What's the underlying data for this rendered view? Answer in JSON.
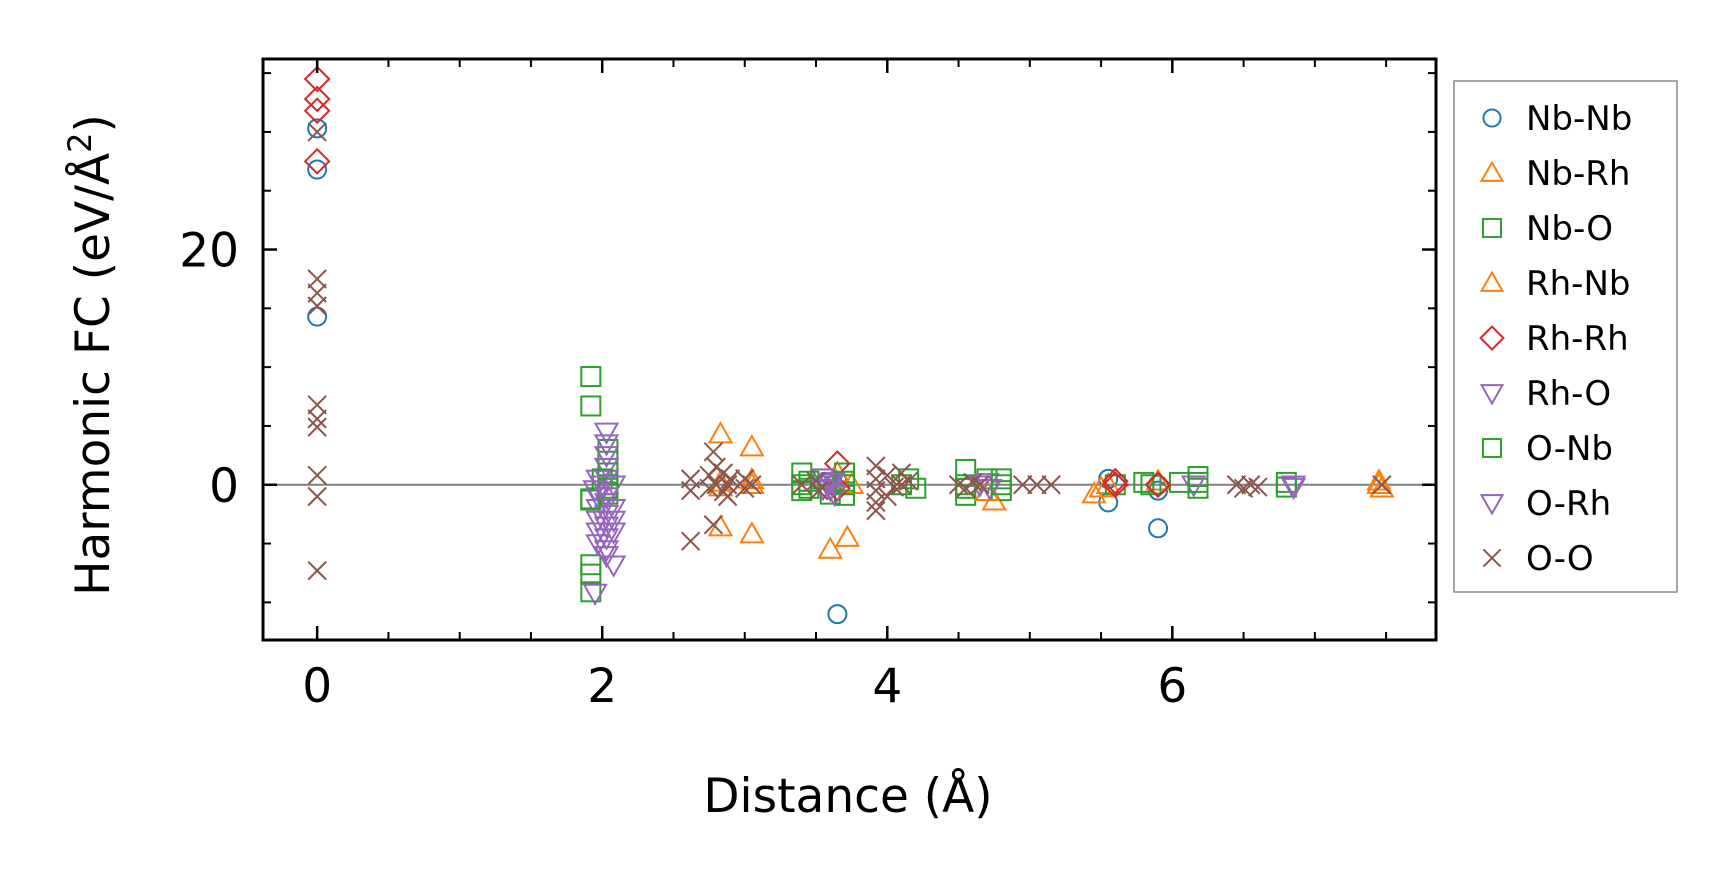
{
  "chart_data": {
    "type": "scatter",
    "title": "",
    "xlabel": "Distance (Å)",
    "ylabel": "Harmonic FC (eV/Å²)",
    "ylabel_base": "Harmonic FC (eV/Å",
    "ylabel_sup": "2",
    "ylabel_close": ")",
    "xlim": [
      -0.38,
      7.85
    ],
    "ylim": [
      -13.2,
      36.2
    ],
    "xticks": [
      0,
      2,
      4,
      6
    ],
    "yticks": [
      0,
      20
    ],
    "xtick_labels": [
      "0",
      "2",
      "4",
      "6"
    ],
    "ytick_labels": [
      "0",
      "20"
    ],
    "x_minor_step": 0.5,
    "y_minor_step": 5,
    "zero_line": true,
    "grid": false,
    "legend_position": "right-outside",
    "series": [
      {
        "name": "Nb-Nb",
        "marker": "circle",
        "color": "#1f77b4",
        "points": [
          [
            0,
            30.3
          ],
          [
            0,
            26.8
          ],
          [
            0,
            14.3
          ],
          [
            3.65,
            -11
          ],
          [
            3.65,
            0.3
          ],
          [
            3.62,
            0
          ],
          [
            5.55,
            -1.5
          ],
          [
            5.55,
            0.5
          ],
          [
            5.9,
            -3.7
          ],
          [
            5.9,
            0
          ],
          [
            5.9,
            -0.5
          ]
        ]
      },
      {
        "name": "Nb-Rh",
        "marker": "triangle-up",
        "color": "#ff7f0e",
        "points": [
          [
            2.83,
            4.3
          ],
          [
            2.83,
            -3.6
          ],
          [
            2.83,
            -0.2
          ],
          [
            3.05,
            3.2
          ],
          [
            3.05,
            -4.2
          ],
          [
            3.05,
            0
          ],
          [
            3.6,
            -5.5
          ],
          [
            3.72,
            -4.5
          ],
          [
            3.65,
            1
          ],
          [
            3.75,
            0
          ],
          [
            4.75,
            -1.4
          ],
          [
            5.45,
            -0.8
          ],
          [
            5.55,
            0
          ],
          [
            5.9,
            0.3
          ],
          [
            7.45,
            0
          ],
          [
            7.47,
            -0.3
          ]
        ]
      },
      {
        "name": "Nb-O",
        "marker": "square",
        "color": "#2ca02c",
        "points": [
          [
            1.92,
            9.2
          ],
          [
            1.92,
            6.7
          ],
          [
            1.92,
            -1.3
          ],
          [
            1.92,
            -6.8
          ],
          [
            1.92,
            -7.6
          ],
          [
            1.92,
            -9.1
          ],
          [
            2.04,
            3
          ],
          [
            2.04,
            2
          ],
          [
            2.04,
            1
          ],
          [
            2.04,
            0
          ],
          [
            2.04,
            -0.8
          ],
          [
            3.4,
            1
          ],
          [
            3.4,
            0
          ],
          [
            3.4,
            -0.5
          ],
          [
            3.55,
            0.5
          ],
          [
            3.6,
            -0.8
          ],
          [
            3.7,
            1
          ],
          [
            3.7,
            0
          ],
          [
            3.7,
            -0.9
          ],
          [
            4.1,
            0
          ],
          [
            4.15,
            0.5
          ],
          [
            4.2,
            -0.3
          ],
          [
            4.55,
            1.3
          ],
          [
            4.55,
            0
          ],
          [
            4.55,
            -0.9
          ],
          [
            4.7,
            0.5
          ],
          [
            4.8,
            0.5
          ],
          [
            4.8,
            -0.5
          ],
          [
            5.6,
            0
          ],
          [
            5.8,
            0.2
          ],
          [
            5.85,
            0
          ],
          [
            6.05,
            0.2
          ],
          [
            6.18,
            0.7
          ],
          [
            6.18,
            -0.3
          ],
          [
            6.8,
            0.2
          ],
          [
            6.8,
            -0.2
          ]
        ]
      },
      {
        "name": "Rh-Nb",
        "marker": "triangle-up",
        "color": "#ff7f0e",
        "points": [
          [
            2.83,
            0.2
          ],
          [
            3.05,
            0.4
          ],
          [
            3.63,
            0.5
          ],
          [
            4.7,
            -0.6
          ],
          [
            5.5,
            -0.3
          ],
          [
            7.45,
            0.3
          ]
        ]
      },
      {
        "name": "Rh-Rh",
        "marker": "diamond",
        "color": "#d62728",
        "points": [
          [
            0,
            34.5
          ],
          [
            0,
            32.8
          ],
          [
            0,
            31.8
          ],
          [
            0,
            27.5
          ],
          [
            3.65,
            1.8
          ],
          [
            3.65,
            -0.3
          ],
          [
            5.6,
            0
          ],
          [
            5.6,
            0.3
          ],
          [
            5.9,
            0
          ]
        ]
      },
      {
        "name": "Rh-O",
        "marker": "triangle-down",
        "color": "#9467bd",
        "points": [
          [
            1.95,
            -9.2
          ],
          [
            1.97,
            0.5
          ],
          [
            1.97,
            -1
          ],
          [
            1.97,
            -2
          ],
          [
            1.97,
            -3
          ],
          [
            1.97,
            -4
          ],
          [
            1.97,
            -5
          ],
          [
            2.03,
            4.5
          ],
          [
            2.03,
            3.5
          ],
          [
            2.03,
            2.5
          ],
          [
            2.03,
            1.5
          ],
          [
            2.03,
            0.5
          ],
          [
            2.03,
            -1.5
          ],
          [
            2.03,
            -2.5
          ],
          [
            2.03,
            -3.5
          ],
          [
            2.03,
            -4.5
          ],
          [
            2.03,
            -5.5
          ],
          [
            2.03,
            -6
          ],
          [
            2.08,
            -6.8
          ],
          [
            2.08,
            -4
          ],
          [
            2.08,
            -2
          ],
          [
            2.08,
            0
          ],
          [
            2.08,
            -3
          ],
          [
            3.55,
            0.6
          ],
          [
            3.58,
            0
          ],
          [
            3.6,
            -0.4
          ],
          [
            3.62,
            0.3
          ],
          [
            3.63,
            -0.8
          ],
          [
            4.7,
            0.2
          ],
          [
            4.72,
            -0.3
          ],
          [
            6.15,
            0
          ],
          [
            6.85,
            0
          ]
        ]
      },
      {
        "name": "O-Nb",
        "marker": "square",
        "color": "#2ca02c",
        "points": [
          [
            1.92,
            -1.2
          ],
          [
            2.0,
            0.5
          ],
          [
            2.04,
            -0.3
          ],
          [
            3.45,
            0.3
          ],
          [
            3.45,
            -0.3
          ],
          [
            3.7,
            0.3
          ],
          [
            4.55,
            -0.3
          ],
          [
            4.8,
            0
          ],
          [
            6.18,
            0.2
          ]
        ]
      },
      {
        "name": "O-Rh",
        "marker": "triangle-down",
        "color": "#9467bd",
        "points": [
          [
            1.95,
            -0.4
          ],
          [
            2.0,
            0
          ],
          [
            2.03,
            -1
          ],
          [
            3.55,
            -0.3
          ],
          [
            3.6,
            0.2
          ],
          [
            4.65,
            0
          ],
          [
            6.85,
            -0.2
          ]
        ]
      },
      {
        "name": "O-O",
        "marker": "x",
        "color": "#8c564b",
        "points": [
          [
            0,
            30
          ],
          [
            0,
            17.5
          ],
          [
            0,
            16.3
          ],
          [
            0,
            15.2
          ],
          [
            0,
            6.8
          ],
          [
            0,
            5.6
          ],
          [
            0,
            4.9
          ],
          [
            0,
            0.8
          ],
          [
            0,
            -1
          ],
          [
            0,
            -7.3
          ],
          [
            2.62,
            -4.8
          ],
          [
            2.62,
            0.5
          ],
          [
            2.62,
            -0.5
          ],
          [
            2.75,
            0.8
          ],
          [
            2.75,
            -0.3
          ],
          [
            2.78,
            2.8
          ],
          [
            2.78,
            -3.4
          ],
          [
            2.8,
            1.5
          ],
          [
            2.8,
            0
          ],
          [
            2.85,
            1
          ],
          [
            2.85,
            -0.6
          ],
          [
            2.88,
            0
          ],
          [
            2.88,
            -1
          ],
          [
            2.9,
            0.5
          ],
          [
            3.0,
            0.5
          ],
          [
            3.0,
            -0.3
          ],
          [
            3.05,
            0
          ],
          [
            3.4,
            0
          ],
          [
            3.5,
            0.3
          ],
          [
            3.52,
            -0.5
          ],
          [
            3.92,
            1.6
          ],
          [
            3.92,
            0.5
          ],
          [
            3.92,
            -0.5
          ],
          [
            3.92,
            -1.5
          ],
          [
            3.92,
            -2.2
          ],
          [
            4.0,
            -1
          ],
          [
            4.0,
            0.8
          ],
          [
            4.05,
            -0.2
          ],
          [
            4.1,
            1
          ],
          [
            4.1,
            0
          ],
          [
            4.15,
            0.3
          ],
          [
            4.5,
            0
          ],
          [
            4.55,
            -0.3
          ],
          [
            4.6,
            0.2
          ],
          [
            4.65,
            0
          ],
          [
            4.95,
            0
          ],
          [
            5.05,
            0
          ],
          [
            5.15,
            0
          ],
          [
            6.45,
            0
          ],
          [
            6.5,
            -0.3
          ],
          [
            6.55,
            0
          ],
          [
            6.6,
            -0.2
          ],
          [
            7.47,
            0
          ]
        ]
      }
    ]
  }
}
